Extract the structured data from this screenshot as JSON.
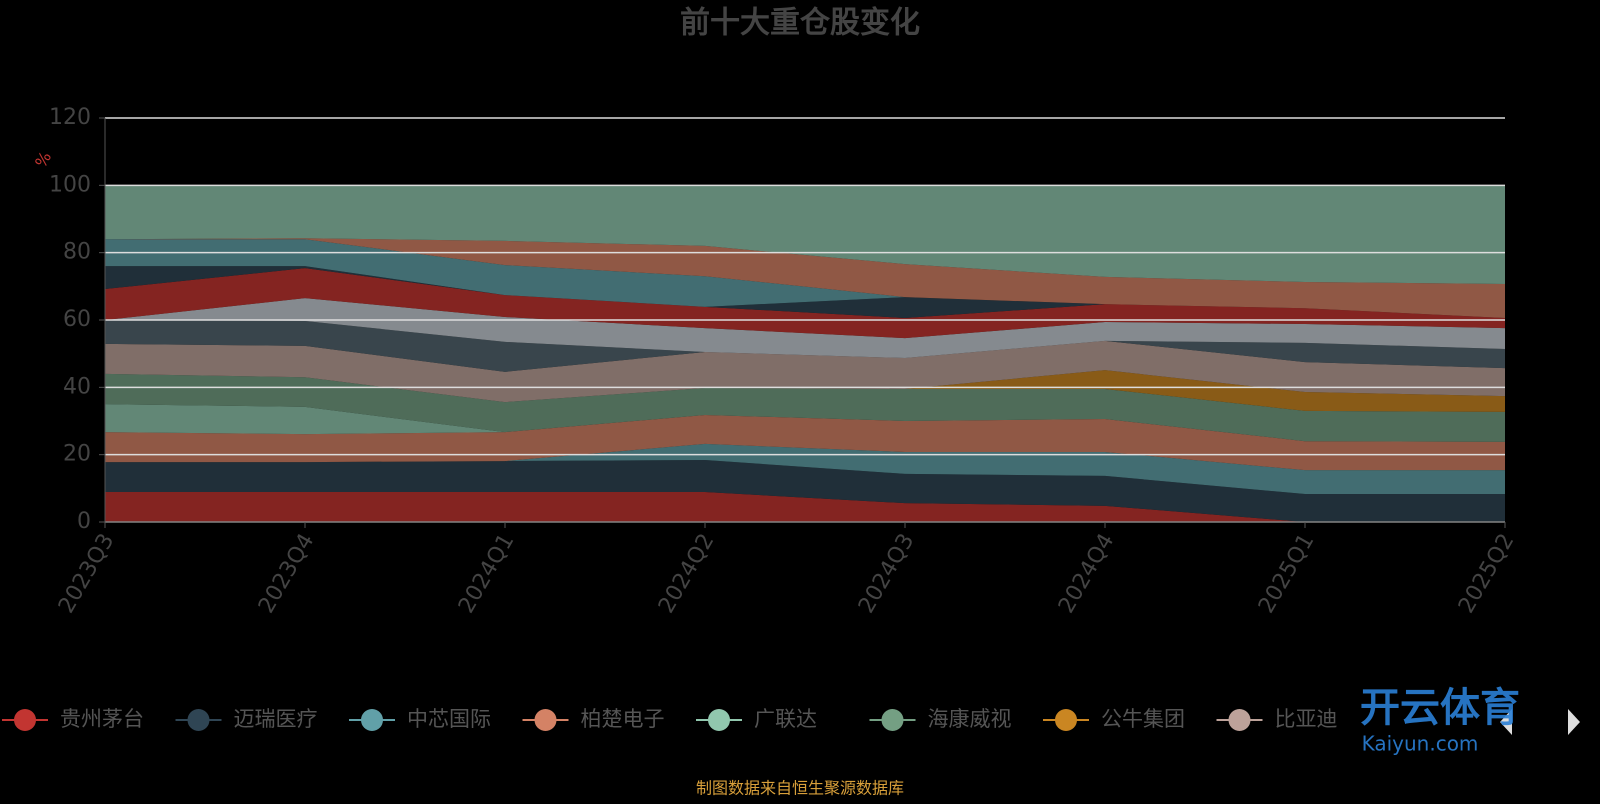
{
  "chart_data": {
    "type": "stacked-area",
    "title": "前十大重仓股变化",
    "y_label": "%",
    "source": "制图数据来自恒生聚源数据库",
    "watermark": [
      "开云体育",
      "Kaiyun.com"
    ],
    "categories": [
      "2023Q3",
      "2023Q4",
      "2024Q1",
      "2024Q2",
      "2024Q3",
      "2024Q4",
      "2025Q1",
      "2025Q2"
    ],
    "ylim": [
      0,
      120
    ],
    "yticks": [
      0,
      20,
      40,
      60,
      80,
      100,
      120
    ],
    "grid": true,
    "series": [
      {
        "name": "贵州茅台",
        "color": "#c23531",
        "values": [
          8.9,
          8.9,
          8.9,
          8.9,
          5.6,
          4.8,
          0,
          0
        ]
      },
      {
        "name": "迈瑞医疗",
        "color": "#2f4554",
        "values": [
          8.9,
          8.9,
          9.2,
          9.5,
          8.7,
          8.9,
          8.3,
          8.3
        ]
      },
      {
        "name": "中芯国际",
        "color": "#61a0a8",
        "values": [
          0,
          0,
          0,
          4.8,
          6.5,
          7.1,
          7.1,
          7.1
        ]
      },
      {
        "name": "柏楚电子",
        "color": "#d48265",
        "values": [
          8.9,
          8.3,
          8.6,
          8.6,
          9.2,
          9.8,
          8.6,
          8.4
        ]
      },
      {
        "name": "广联达",
        "color": "#91c7ae",
        "values": [
          8.3,
          8.1,
          0,
          0,
          0,
          0,
          0,
          0
        ]
      },
      {
        "name": "海康威视",
        "color": "#749f83",
        "values": [
          9,
          8.8,
          8.9,
          8,
          9.5,
          8.9,
          9,
          8.9
        ]
      },
      {
        "name": "公牛集团",
        "color": "#ca8622",
        "values": [
          0,
          0,
          0,
          0,
          0,
          5.6,
          5.6,
          4.7
        ]
      },
      {
        "name": "比亚迪",
        "color": "#bda29a",
        "values": [
          8.9,
          9.3,
          9,
          10.7,
          9.2,
          8.7,
          8.9,
          8.3
        ]
      },
      {
        "name": null,
        "color": "#546570",
        "values": [
          7.1,
          7.4,
          8.9,
          0,
          0,
          0,
          5.7,
          5.7
        ]
      },
      {
        "name": null,
        "color": "#c4ccd3",
        "values": [
          0,
          6.8,
          7.4,
          7.1,
          5.9,
          5.6,
          5.6,
          6.2
        ]
      },
      {
        "name": null,
        "color": "#c23531",
        "values": [
          9.2,
          8.9,
          6.5,
          6.3,
          6,
          5.3,
          4.7,
          3
        ]
      },
      {
        "name": null,
        "color": "#2f4554",
        "values": [
          6.8,
          0.6,
          0,
          0,
          6.2,
          0,
          0,
          0
        ]
      },
      {
        "name": null,
        "color": "#61a0a8",
        "values": [
          8,
          8,
          8.9,
          9.1,
          0,
          0,
          0,
          0
        ]
      },
      {
        "name": null,
        "color": "#d48265",
        "values": [
          0,
          0.3,
          7.2,
          9,
          9.8,
          8.1,
          7.8,
          10.1
        ]
      },
      {
        "name": null,
        "color": "#91c7ae",
        "values": [
          16,
          15.7,
          16.5,
          18,
          23.4,
          27.2,
          28.7,
          29.3
        ]
      }
    ]
  }
}
